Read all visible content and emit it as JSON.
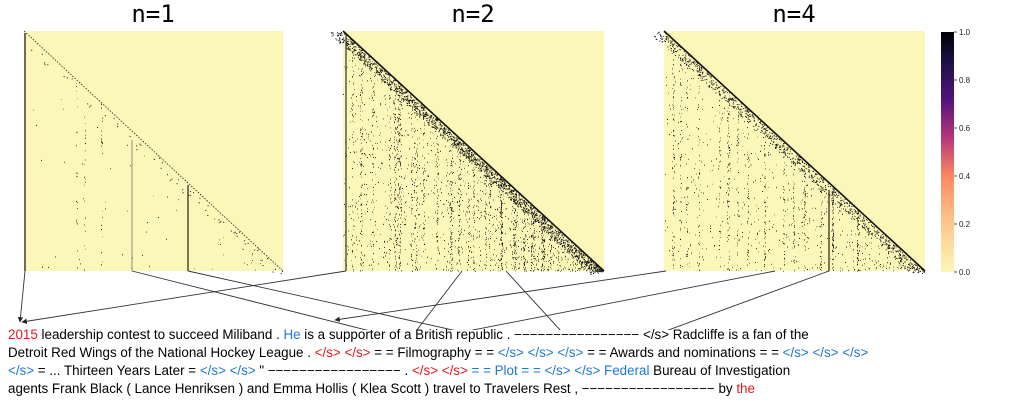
{
  "panels": [
    {
      "title": "n=1",
      "pattern": "n1"
    },
    {
      "title": "n=2",
      "pattern": "n2"
    },
    {
      "title": "n=4",
      "pattern": "n4"
    }
  ],
  "colorbar": {
    "ticks": [
      "1.0",
      "0.8",
      "0.6",
      "0.4",
      "0.2",
      "0.0"
    ],
    "colormap": "magma_r",
    "low_color": "#fbf7b8",
    "high_color": "#000004"
  },
  "passage": {
    "lines": [
      [
        {
          "t": "2015",
          "c": "red"
        },
        {
          "t": " leadership contest to succeed Miliband . ",
          "c": "black"
        },
        {
          "t": "He",
          "c": "blue"
        },
        {
          "t": " is a supporter of a British republic . −−−−−−−−−−−−−−−− </s> Radcliffe is a fan of the",
          "c": "black"
        }
      ],
      [
        {
          "t": "Detroit Red Wings of the National Hockey League . ",
          "c": "black"
        },
        {
          "t": "</s> </s>",
          "c": "red"
        },
        {
          "t": " = = Filmography = = ",
          "c": "black"
        },
        {
          "t": "</s> </s> </s>",
          "c": "blue"
        },
        {
          "t": " = = Awards and nominations = = ",
          "c": "black"
        },
        {
          "t": "</s> </s> </s>",
          "c": "blue"
        }
      ],
      [
        {
          "t": "</s>",
          "c": "blue"
        },
        {
          "t": " = ... Thirteen Years Later = ",
          "c": "black"
        },
        {
          "t": "</s> </s>",
          "c": "blue"
        },
        {
          "t": " \" −−−−−−−−−−−−−−−−− . ",
          "c": "black"
        },
        {
          "t": "</s> </s>",
          "c": "red"
        },
        {
          "t": " = = Plot = = </s> </s> Federal",
          "c": "blue"
        },
        {
          "t": " Bureau of Investigation",
          "c": "black"
        }
      ],
      [
        {
          "t": "agents Frank Black ( Lance Henriksen ) and Emma Hollis ( Klea Scott ) travel to Travelers Rest , −−−−−−−−−−−−−−−−− by ",
          "c": "black"
        },
        {
          "t": "the",
          "c": "red"
        }
      ]
    ]
  }
}
